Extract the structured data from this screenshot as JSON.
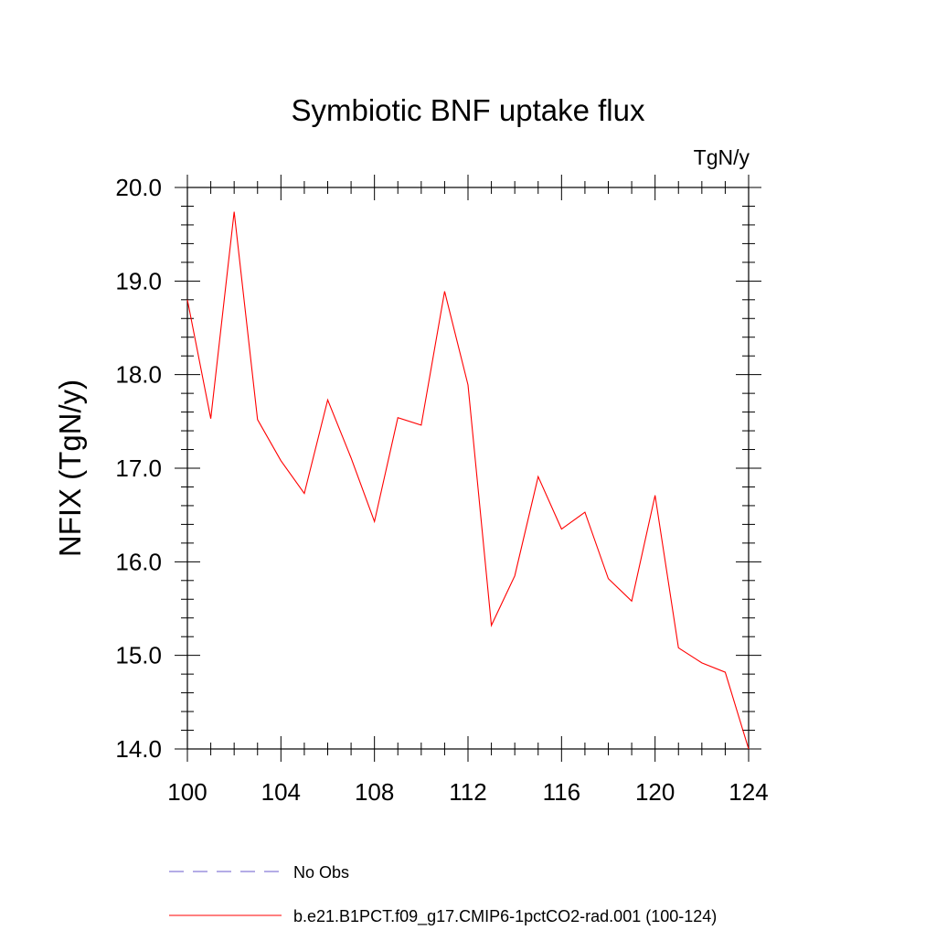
{
  "chart_data": {
    "type": "line",
    "title": "Symbiotic BNF uptake flux",
    "units_label": "TgN/y",
    "xlabel": "",
    "ylabel": "NFIX  (TgN/y)",
    "xlim": [
      100,
      124
    ],
    "ylim": [
      14.0,
      20.0
    ],
    "x_ticks": [
      100,
      104,
      108,
      112,
      116,
      120,
      124
    ],
    "x_tick_labels": [
      "100",
      "104",
      "108",
      "112",
      "116",
      "120",
      "124"
    ],
    "y_ticks": [
      14.0,
      15.0,
      16.0,
      17.0,
      18.0,
      19.0,
      20.0
    ],
    "y_tick_labels": [
      "14.0",
      "15.0",
      "16.0",
      "17.0",
      "18.0",
      "19.0",
      "20.0"
    ],
    "grid": false,
    "legend_position": "bottom",
    "x": [
      100,
      101,
      102,
      103,
      104,
      105,
      106,
      107,
      108,
      109,
      110,
      111,
      112,
      113,
      114,
      115,
      116,
      117,
      118,
      119,
      120,
      121,
      122,
      123,
      124
    ],
    "series": [
      {
        "name": "b.e21.B1PCT.f09_g17.CMIP6-1pctCO2-rad.001 (100-124)",
        "color": "#ff0000",
        "style": "solid",
        "values": [
          18.8,
          17.53,
          19.74,
          17.52,
          17.08,
          16.73,
          17.73,
          17.11,
          16.43,
          17.54,
          17.46,
          18.89,
          17.89,
          15.32,
          15.85,
          16.91,
          16.35,
          16.53,
          15.82,
          15.58,
          16.71,
          15.08,
          14.92,
          14.82,
          14.0
        ]
      }
    ],
    "legend": [
      {
        "label": "No Obs",
        "color": "#6a5acd",
        "style": "dashed"
      },
      {
        "label": "b.e21.B1PCT.f09_g17.CMIP6-1pctCO2-rad.001 (100-124)",
        "color": "#ff0000",
        "style": "solid"
      }
    ]
  }
}
